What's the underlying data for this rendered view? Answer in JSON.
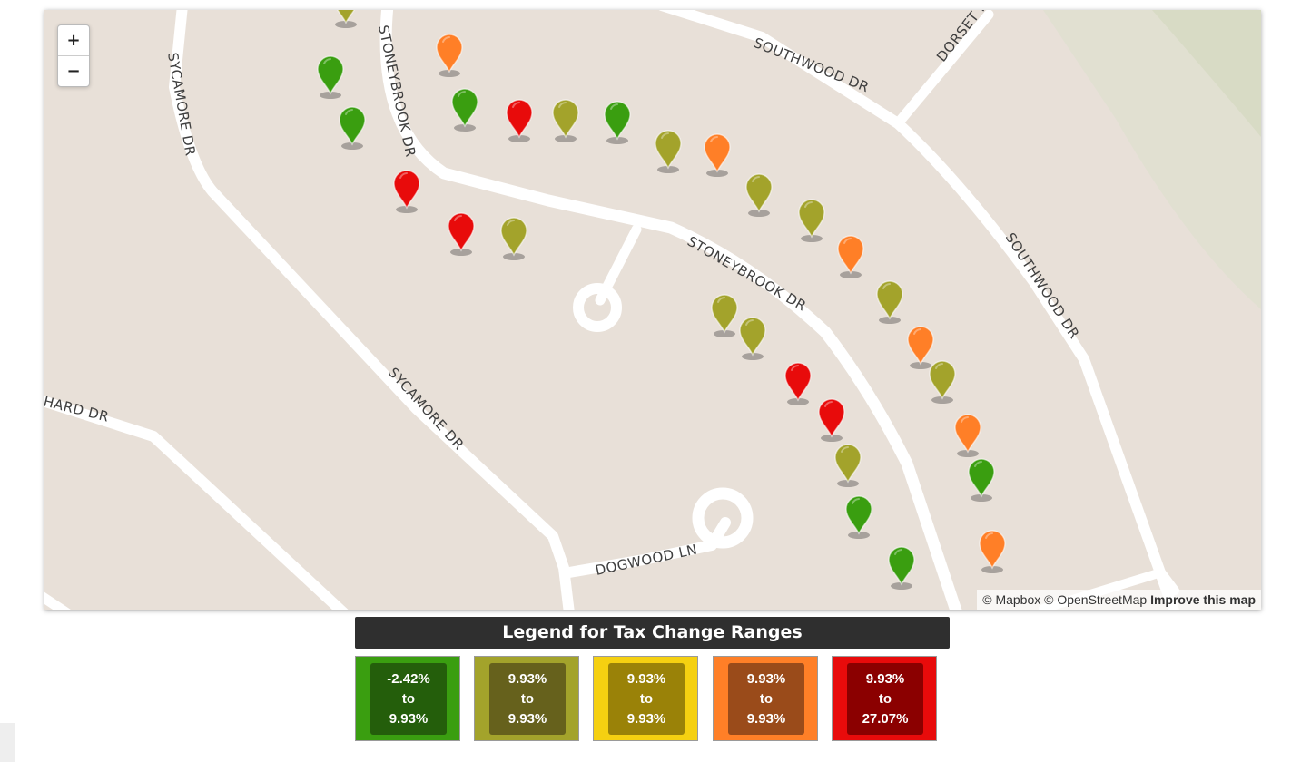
{
  "map": {
    "zoom_in": "+",
    "zoom_out": "−",
    "attribution": {
      "mapbox": "© Mapbox",
      "osm": "© OpenStreetMap",
      "improve": "Improve this map"
    },
    "road_labels": {
      "sycamore_1": "SYCAMORE DR",
      "sycamore_2": "SYCAMORE DR",
      "stoneybrook_1": "STONEYBROOK DR",
      "stoneybrook_2": "STONEYBROOK DR",
      "southwood_1": "SOUTHWOOD DR",
      "southwood_2": "SOUTHWOOD DR",
      "dorset": "DORSET R",
      "dogwood": "DOGWOOD LN",
      "hard": "HARD DR"
    },
    "colors": {
      "background": "#e8e0d8",
      "road": "#ffffff",
      "range_1": "#3a9e10",
      "range_2": "#a3a32b",
      "range_3": "#f5d011",
      "range_4": "#ff7f27",
      "range_5": "#e80b0b"
    },
    "markers": [
      {
        "range": 2
      },
      {
        "range": 4
      },
      {
        "range": 1
      },
      {
        "range": 1
      },
      {
        "range": 1
      },
      {
        "range": 5
      },
      {
        "range": 2
      },
      {
        "range": 1
      },
      {
        "range": 2
      },
      {
        "range": 4
      },
      {
        "range": 5
      },
      {
        "range": 5
      },
      {
        "range": 2
      },
      {
        "range": 2
      },
      {
        "range": 2
      },
      {
        "range": 4
      },
      {
        "range": 2
      },
      {
        "range": 2
      },
      {
        "range": 2
      },
      {
        "range": 5
      },
      {
        "range": 5
      },
      {
        "range": 2
      },
      {
        "range": 4
      },
      {
        "range": 2
      },
      {
        "range": 4
      },
      {
        "range": 1
      },
      {
        "range": 1
      },
      {
        "range": 1
      },
      {
        "range": 4
      }
    ]
  },
  "legend": {
    "title": "Legend for Tax Change Ranges",
    "items": [
      {
        "from": "-2.42%",
        "sep": "to",
        "to": "9.93%",
        "outer": "#3a9e10",
        "inner": "#245e0b"
      },
      {
        "from": "9.93%",
        "sep": "to",
        "to": "9.93%",
        "outer": "#a3a32b",
        "inner": "#66611c"
      },
      {
        "from": "9.93%",
        "sep": "to",
        "to": "9.93%",
        "outer": "#f5d011",
        "inner": "#9a8208"
      },
      {
        "from": "9.93%",
        "sep": "to",
        "to": "9.93%",
        "outer": "#ff7f27",
        "inner": "#9a4b1a"
      },
      {
        "from": "9.93%",
        "sep": "to",
        "to": "27.07%",
        "outer": "#e80b0b",
        "inner": "#8b0000"
      }
    ]
  }
}
